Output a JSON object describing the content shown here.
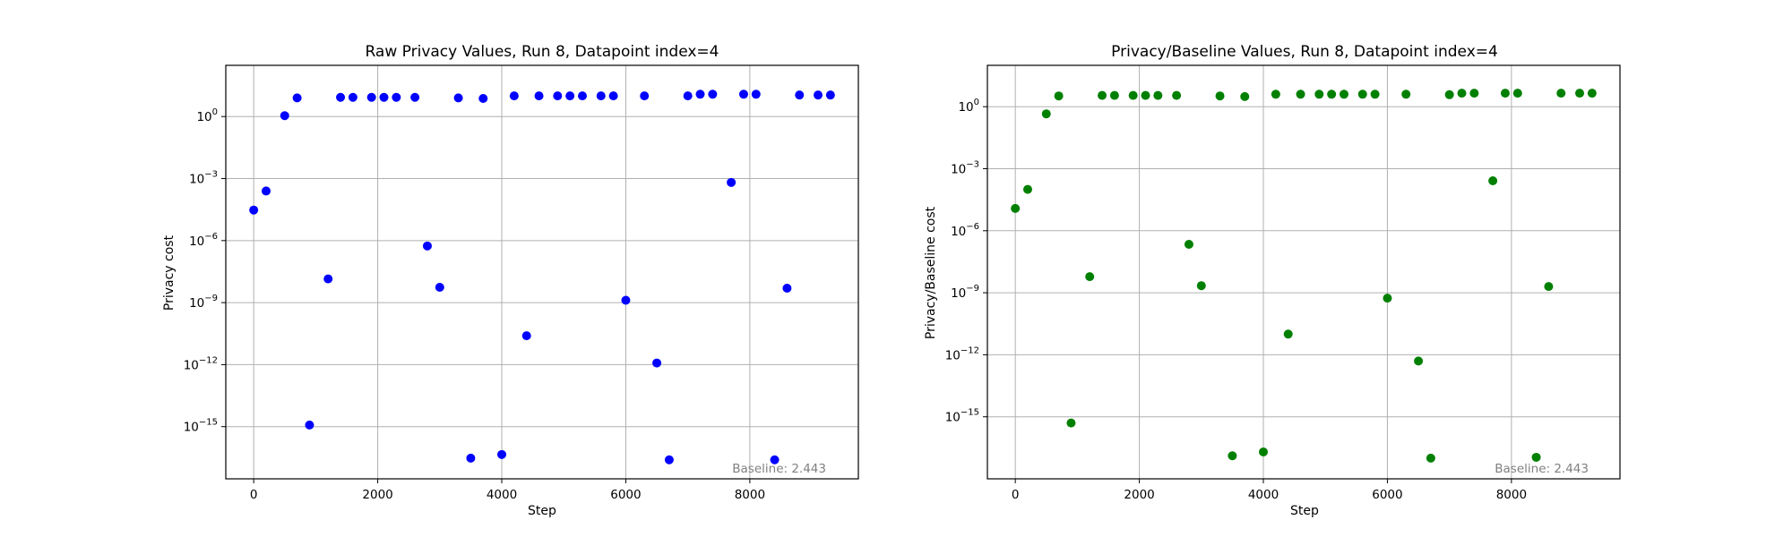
{
  "chart_data": [
    {
      "type": "scatter",
      "title": "Raw Privacy Values, Run 8, Datapoint index=4",
      "xlabel": "Step",
      "ylabel": "Privacy cost",
      "yscale": "log",
      "grid": true,
      "xlim": [
        -450,
        9750
      ],
      "ylim": [
        3e-18,
        300
      ],
      "xticks": [
        0,
        2000,
        4000,
        6000,
        8000
      ],
      "xtick_labels": [
        "0",
        "2000",
        "4000",
        "6000",
        "8000"
      ],
      "yticks": [
        1e-15,
        1e-12,
        1e-09,
        1e-06,
        0.001,
        1
      ],
      "ytick_labels": [
        {
          "base": "10",
          "exp": "−15"
        },
        {
          "base": "10",
          "exp": "−12"
        },
        {
          "base": "10",
          "exp": "−9"
        },
        {
          "base": "10",
          "exp": "−6"
        },
        {
          "base": "10",
          "exp": "−3"
        },
        {
          "base": "10",
          "exp": "0"
        }
      ],
      "annotation": "Baseline: 2.443",
      "color": "#0000ff",
      "points": [
        [
          0,
          3e-05
        ],
        [
          200,
          0.00025
        ],
        [
          500,
          1.1
        ],
        [
          700,
          8
        ],
        [
          900,
          1.2e-15
        ],
        [
          1200,
          1.4e-08
        ],
        [
          1400,
          8.5
        ],
        [
          1600,
          8.5
        ],
        [
          1900,
          8.5
        ],
        [
          2100,
          8.5
        ],
        [
          2300,
          8.5
        ],
        [
          2600,
          8.5
        ],
        [
          2800,
          5.5e-07
        ],
        [
          3000,
          5.5e-09
        ],
        [
          3300,
          8
        ],
        [
          3500,
          3e-17
        ],
        [
          3700,
          7.5
        ],
        [
          4000,
          4.5e-17
        ],
        [
          4200,
          10
        ],
        [
          4400,
          2.5e-11
        ],
        [
          4600,
          10
        ],
        [
          4900,
          10
        ],
        [
          5100,
          10
        ],
        [
          5300,
          10
        ],
        [
          5600,
          10
        ],
        [
          5800,
          10
        ],
        [
          6000,
          1.3e-09
        ],
        [
          6300,
          10
        ],
        [
          6500,
          1.2e-12
        ],
        [
          6700,
          2.5e-17
        ],
        [
          7000,
          10
        ],
        [
          7200,
          12
        ],
        [
          7400,
          12
        ],
        [
          7700,
          0.00065
        ],
        [
          7900,
          12
        ],
        [
          8100,
          12
        ],
        [
          8400,
          2.5e-17
        ],
        [
          8600,
          5e-09
        ],
        [
          8800,
          11
        ],
        [
          9100,
          11
        ],
        [
          9300,
          11
        ]
      ]
    },
    {
      "type": "scatter",
      "title": "Privacy/Baseline Values, Run 8, Datapoint index=4",
      "xlabel": "Step",
      "ylabel": "Privacy/Baseline cost",
      "yscale": "log",
      "grid": true,
      "xlim": [
        -450,
        9750
      ],
      "ylim": [
        1e-18,
        100
      ],
      "xticks": [
        0,
        2000,
        4000,
        6000,
        8000
      ],
      "xtick_labels": [
        "0",
        "2000",
        "4000",
        "6000",
        "8000"
      ],
      "yticks": [
        1e-15,
        1e-12,
        1e-09,
        1e-06,
        0.001,
        1
      ],
      "ytick_labels": [
        {
          "base": "10",
          "exp": "−15"
        },
        {
          "base": "10",
          "exp": "−12"
        },
        {
          "base": "10",
          "exp": "−9"
        },
        {
          "base": "10",
          "exp": "−6"
        },
        {
          "base": "10",
          "exp": "−3"
        },
        {
          "base": "10",
          "exp": "0"
        }
      ],
      "annotation": "Baseline: 2.443",
      "color": "#008000",
      "points": [
        [
          0,
          1.2e-05
        ],
        [
          200,
          0.0001
        ],
        [
          500,
          0.45
        ],
        [
          700,
          3.3
        ],
        [
          900,
          5e-16
        ],
        [
          1200,
          6e-09
        ],
        [
          1400,
          3.5
        ],
        [
          1600,
          3.5
        ],
        [
          1900,
          3.5
        ],
        [
          2100,
          3.5
        ],
        [
          2300,
          3.5
        ],
        [
          2600,
          3.5
        ],
        [
          2800,
          2.2e-07
        ],
        [
          3000,
          2.2e-09
        ],
        [
          3300,
          3.3
        ],
        [
          3500,
          1.3e-17
        ],
        [
          3700,
          3.1
        ],
        [
          4000,
          2e-17
        ],
        [
          4200,
          4
        ],
        [
          4400,
          1e-11
        ],
        [
          4600,
          4
        ],
        [
          4900,
          4
        ],
        [
          5100,
          4
        ],
        [
          5300,
          4
        ],
        [
          5600,
          4
        ],
        [
          5800,
          4
        ],
        [
          6000,
          5.5e-10
        ],
        [
          6300,
          4
        ],
        [
          6500,
          5e-13
        ],
        [
          6700,
          1e-17
        ],
        [
          7000,
          3.8
        ],
        [
          7200,
          4.5
        ],
        [
          7400,
          4.5
        ],
        [
          7700,
          0.00026
        ],
        [
          7900,
          4.5
        ],
        [
          8100,
          4.5
        ],
        [
          8400,
          1.1e-17
        ],
        [
          8600,
          2e-09
        ],
        [
          8800,
          4.5
        ],
        [
          9100,
          4.5
        ],
        [
          9300,
          4.5
        ]
      ]
    }
  ]
}
